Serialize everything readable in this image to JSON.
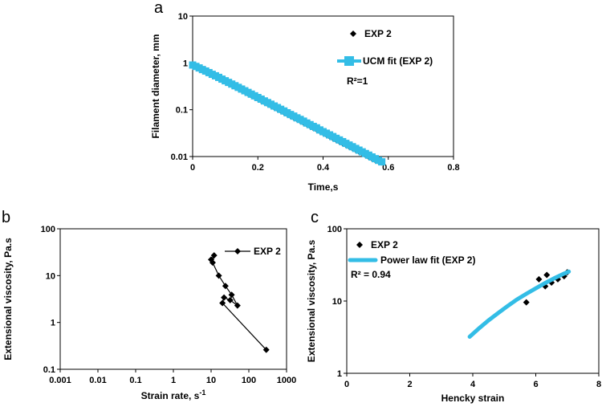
{
  "chart_data": [
    {
      "panel": "a",
      "type": "scatter",
      "xlabel": "Time,s",
      "ylabel": "Filament diameter, mm",
      "xlim": [
        0,
        0.8
      ],
      "ylim": [
        0.01,
        10
      ],
      "yscale": "log",
      "xticks": [
        "0",
        "0.2",
        "0.4",
        "0.6",
        "0.8"
      ],
      "yticks": [
        "0.01",
        "0.1",
        "1",
        "10"
      ],
      "legend": [
        "EXP 2",
        "UCM fit (EXP 2)"
      ],
      "annotation": "R²=1",
      "series": [
        {
          "name": "EXP 2",
          "marker": "diamond",
          "x": [
            0.0,
            0.01,
            0.02,
            0.03,
            0.04,
            0.05,
            0.06,
            0.07,
            0.08,
            0.09,
            0.1,
            0.11,
            0.12,
            0.13,
            0.14,
            0.15,
            0.16,
            0.17,
            0.18,
            0.19,
            0.2,
            0.21,
            0.22,
            0.23,
            0.24,
            0.25,
            0.26,
            0.27,
            0.28,
            0.29,
            0.3,
            0.31,
            0.32,
            0.33,
            0.34,
            0.35,
            0.36,
            0.37,
            0.38,
            0.39,
            0.4,
            0.41,
            0.42,
            0.43,
            0.44,
            0.45,
            0.46,
            0.47,
            0.48,
            0.49,
            0.5,
            0.51,
            0.52,
            0.53,
            0.54,
            0.55,
            0.56,
            0.57,
            0.58
          ],
          "y": [
            0.9,
            0.86,
            0.8,
            0.74,
            0.68,
            0.62,
            0.57,
            0.52,
            0.48,
            0.44,
            0.405,
            0.37,
            0.34,
            0.312,
            0.287,
            0.263,
            0.242,
            0.222,
            0.204,
            0.188,
            0.172,
            0.158,
            0.146,
            0.134,
            0.123,
            0.113,
            0.104,
            0.096,
            0.088,
            0.081,
            0.074,
            0.068,
            0.063,
            0.058,
            0.053,
            0.049,
            0.045,
            0.041,
            0.038,
            0.035,
            0.032,
            0.0295,
            0.027,
            0.0248,
            0.0228,
            0.021,
            0.0193,
            0.0178,
            0.0164,
            0.0151,
            0.0139,
            0.0128,
            0.0118,
            0.0108,
            0.0099,
            0.0091,
            0.0084,
            0.0079,
            0.0075
          ]
        },
        {
          "name": "UCM fit (EXP 2)",
          "marker": "square",
          "color": "#33bde6",
          "x": [
            0.0,
            0.01,
            0.02,
            0.03,
            0.04,
            0.05,
            0.06,
            0.07,
            0.08,
            0.09,
            0.1,
            0.11,
            0.12,
            0.13,
            0.14,
            0.15,
            0.16,
            0.17,
            0.18,
            0.19,
            0.2,
            0.21,
            0.22,
            0.23,
            0.24,
            0.25,
            0.26,
            0.27,
            0.28,
            0.29,
            0.3,
            0.31,
            0.32,
            0.33,
            0.34,
            0.35,
            0.36,
            0.37,
            0.38,
            0.39,
            0.4,
            0.41,
            0.42,
            0.43,
            0.44,
            0.45,
            0.46,
            0.47,
            0.48,
            0.49,
            0.5,
            0.51,
            0.52,
            0.53,
            0.54,
            0.55,
            0.56,
            0.57,
            0.58
          ],
          "y": [
            0.9,
            0.84,
            0.78,
            0.72,
            0.67,
            0.62,
            0.57,
            0.53,
            0.49,
            0.45,
            0.415,
            0.383,
            0.353,
            0.325,
            0.3,
            0.276,
            0.254,
            0.234,
            0.215,
            0.198,
            0.182,
            0.168,
            0.154,
            0.142,
            0.131,
            0.12,
            0.111,
            0.102,
            0.094,
            0.086,
            0.079,
            0.073,
            0.067,
            0.062,
            0.057,
            0.052,
            0.048,
            0.044,
            0.041,
            0.037,
            0.034,
            0.0315,
            0.029,
            0.0267,
            0.0245,
            0.0226,
            0.0208,
            0.0191,
            0.0176,
            0.0162,
            0.0149,
            0.0137,
            0.0126,
            0.0116,
            0.0107,
            0.0098,
            0.009,
            0.0083,
            0.0077
          ]
        }
      ]
    },
    {
      "panel": "b",
      "type": "line",
      "xlabel": "Strain rate, s",
      "xlabel_sup": "-1",
      "ylabel": "Extensional viscosity, Pa.s",
      "xlim": [
        0.001,
        1000
      ],
      "ylim": [
        0.1,
        100
      ],
      "xscale": "log",
      "yscale": "log",
      "xticks": [
        "0.001",
        "0.01",
        "0.1",
        "1",
        "10",
        "100",
        "1000"
      ],
      "yticks": [
        "0.1",
        "1",
        "10",
        "100"
      ],
      "legend": [
        "EXP 2"
      ],
      "series": [
        {
          "name": "EXP 2",
          "marker": "diamond",
          "x": [
            10,
            12,
            11,
            16,
            24,
            35,
            50,
            32,
            22,
            20,
            290
          ],
          "y": [
            22,
            27,
            19,
            10,
            6,
            3.9,
            2.3,
            3.0,
            3.4,
            2.6,
            0.26
          ]
        }
      ]
    },
    {
      "panel": "c",
      "type": "scatter",
      "xlabel": "Hencky strain",
      "ylabel": "Extensional viscosity, Pa.s",
      "xlim": [
        0,
        8
      ],
      "ylim": [
        1,
        100
      ],
      "yscale": "log",
      "xticks": [
        "0",
        "2",
        "4",
        "6",
        "8"
      ],
      "yticks": [
        "1",
        "10",
        "100"
      ],
      "legend": [
        "EXP 2",
        "Power law fit (EXP 2)"
      ],
      "annotation": "R² = 0.94",
      "series": [
        {
          "name": "EXP 2",
          "marker": "diamond",
          "x": [
            5.7,
            6.1,
            6.3,
            6.35,
            6.5,
            6.7,
            6.9,
            7.0
          ],
          "y": [
            9.6,
            20,
            16,
            23,
            18,
            20,
            22,
            25
          ]
        },
        {
          "name": "Power law fit (EXP 2)",
          "marker": "none",
          "color": "#33bde6",
          "x": [
            3.9,
            4.2,
            4.5,
            4.8,
            5.1,
            5.4,
            5.7,
            6.0,
            6.3,
            6.6,
            6.9,
            7.05
          ],
          "y": [
            3.2,
            4.2,
            5.4,
            6.8,
            8.5,
            10.5,
            12.6,
            15.0,
            17.8,
            20.8,
            24.0,
            25.6
          ]
        }
      ]
    }
  ]
}
